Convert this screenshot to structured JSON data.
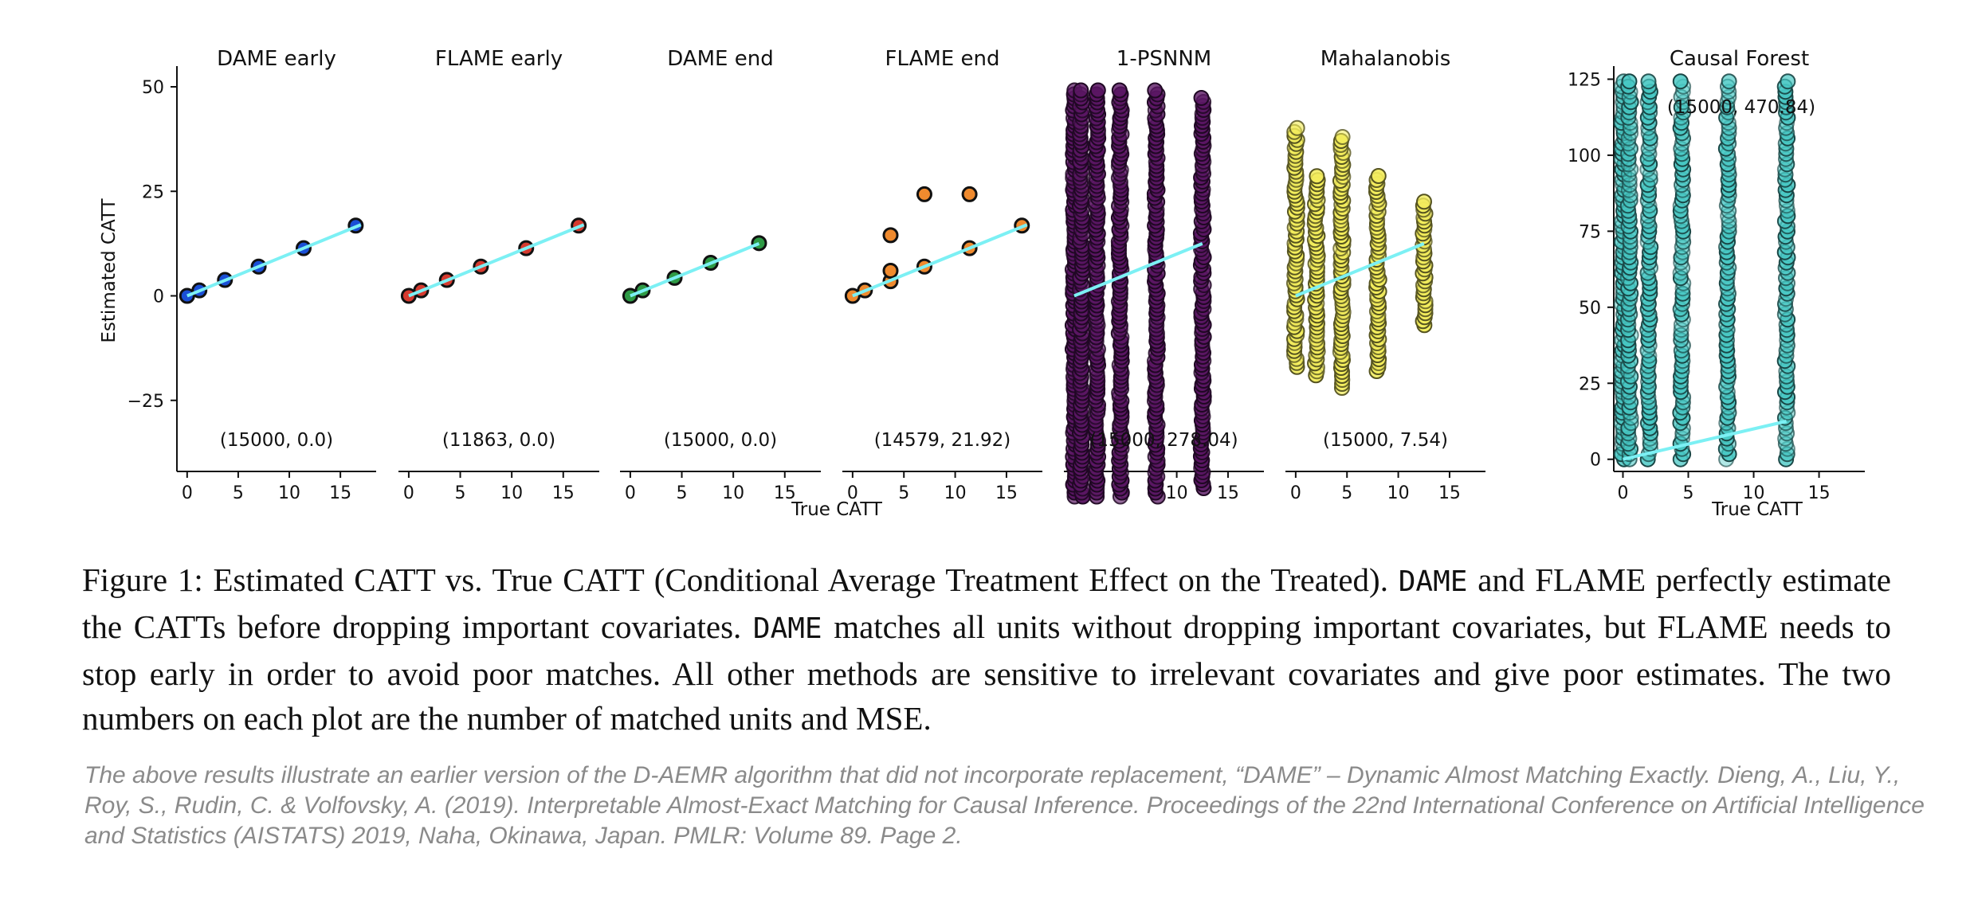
{
  "chart_data": [
    {
      "type": "scatter",
      "title": "DAME early",
      "annotation": "(15000, 0.0)",
      "ylabel": "Estimated CATT",
      "point_color": "#1a4fd6",
      "x": [
        0,
        1.2,
        3.7,
        7.0,
        11.4,
        16.5
      ],
      "y": [
        0,
        1.3,
        3.8,
        7.0,
        11.4,
        16.8
      ],
      "trend": [
        [
          0,
          0
        ],
        [
          17,
          17
        ]
      ],
      "xlim": [
        -1,
        18.5
      ],
      "ylim": [
        -42,
        54
      ],
      "xticks": [
        0,
        5,
        10,
        15
      ],
      "yticks": [
        50,
        25,
        0,
        -25
      ],
      "ytick_labels": [
        "50",
        "25",
        "0",
        "−25"
      ]
    },
    {
      "type": "scatter",
      "title": "FLAME early",
      "annotation": "(11863, 0.0)",
      "point_color": "#d63a2f",
      "x": [
        0,
        1.2,
        3.7,
        7.0,
        11.4,
        16.5
      ],
      "y": [
        0,
        1.3,
        3.8,
        7.0,
        11.4,
        16.8
      ],
      "trend": [
        [
          0,
          0
        ],
        [
          17,
          17
        ]
      ],
      "xlim": [
        -1,
        18.5
      ],
      "ylim": [
        -42,
        54
      ],
      "xticks": [
        0,
        5,
        10,
        15
      ]
    },
    {
      "type": "scatter",
      "title": "DAME end",
      "annotation": "(15000, 0.0)",
      "point_color": "#2e9a45",
      "x": [
        0,
        1.2,
        4.3,
        7.8,
        12.5
      ],
      "y": [
        0,
        1.3,
        4.3,
        7.9,
        12.6
      ],
      "trend": [
        [
          0,
          0
        ],
        [
          12.5,
          12.5
        ]
      ],
      "xlim": [
        -1,
        18.5
      ],
      "ylim": [
        -42,
        54
      ],
      "xticks": [
        0,
        5,
        10,
        15
      ]
    },
    {
      "type": "scatter",
      "title": "FLAME end",
      "annotation": "(14579, 21.92)",
      "xlabel": "True CATT",
      "point_color": "#ef8a2e",
      "x": [
        0,
        1.2,
        3.7,
        3.7,
        3.7,
        7.0,
        7.0,
        11.4,
        11.4,
        16.5
      ],
      "y": [
        0,
        1.3,
        3.5,
        6.0,
        14.5,
        7.0,
        24.3,
        11.4,
        24.3,
        16.8
      ],
      "trend": [
        [
          0,
          0
        ],
        [
          17,
          17
        ]
      ],
      "xlim": [
        -1,
        18.5
      ],
      "ylim": [
        -42,
        54
      ],
      "xticks": [
        0,
        5,
        10,
        15
      ]
    },
    {
      "type": "scatter",
      "title": "1-PSNNM",
      "annotation": "(15000, 278.04)",
      "point_color": "#5a1663",
      "x_columns": [
        0,
        0.7,
        2.2,
        4.5,
        8.0,
        12.5
      ],
      "y_range": [
        -48,
        50
      ],
      "y_range_last_column": [
        -46,
        48
      ],
      "trend": [
        [
          0,
          0
        ],
        [
          12.5,
          12.5
        ]
      ],
      "xlim": [
        -1,
        18.5
      ],
      "ylim": [
        -42,
        54
      ],
      "xticks": [
        0,
        5,
        10,
        15
      ]
    },
    {
      "type": "scatter",
      "title": "Mahalanobis",
      "annotation": "(15000, 7.54)",
      "point_color": "#f2ec5c",
      "x_columns": [
        0,
        2.0,
        4.5,
        8.0,
        12.5
      ],
      "y_ranges": [
        [
          -17,
          41
        ],
        [
          -19,
          29
        ],
        [
          -22,
          38
        ],
        [
          -18,
          29
        ],
        [
          -7,
          23
        ]
      ],
      "trend": [
        [
          0,
          0
        ],
        [
          12.5,
          12.5
        ]
      ],
      "xlim": [
        -1,
        18.5
      ],
      "ylim": [
        -42,
        54
      ],
      "xticks": [
        0,
        5,
        10,
        15
      ]
    },
    {
      "type": "scatter",
      "title": "Causal Forest",
      "annotation": "(15000, 470.84)",
      "xlabel": "True CATT",
      "point_color": "#47c8c4",
      "x_columns": [
        0,
        0.5,
        2.0,
        4.5,
        8.0,
        12.5
      ],
      "y_ranges": [
        [
          0,
          125
        ],
        [
          0,
          125
        ],
        [
          0,
          125
        ],
        [
          0,
          125
        ],
        [
          0,
          125
        ],
        [
          0,
          125
        ]
      ],
      "trend": [
        [
          0,
          0
        ],
        [
          12.5,
          12.5
        ]
      ],
      "xlim": [
        -0.7,
        18.5
      ],
      "ylim": [
        -4,
        128
      ],
      "xticks": [
        0,
        5,
        10,
        15
      ],
      "yticks": [
        125,
        100,
        75,
        50,
        25,
        0
      ]
    }
  ],
  "trend_color": "#7cf0f4",
  "caption": {
    "label": "Figure 1:",
    "part1": "Estimated CATT vs. True CATT (Conditional Average Treatment Effect on the Treated).",
    "dame1": "DAME",
    "part2": "and FLAME perfectly estimate the CATTs before dropping important covariates.",
    "dame2": "DAME",
    "part3": "matches all units without dropping important covariates, but FLAME needs to stop early in order to avoid poor matches. All other methods are sensitive to irrelevant covariates and give poor estimates. The two numbers on each plot are the number of matched units and MSE."
  },
  "citation": "The above results illustrate an earlier version of the D-AEMR algorithm that did not incorporate replacement,  “DAME” – Dynamic Almost Matching Exactly. Dieng, A., Liu, Y., Roy, S., Rudin, C. & Volfovsky, A. (2019). Interpretable Almost-Exact Matching for Causal Inference. Proceedings of the 22nd International Conference on Artificial Intelligence and Statistics (AISTATS) 2019, Naha, Okinawa, Japan. PMLR: Volume 89. Page 2."
}
